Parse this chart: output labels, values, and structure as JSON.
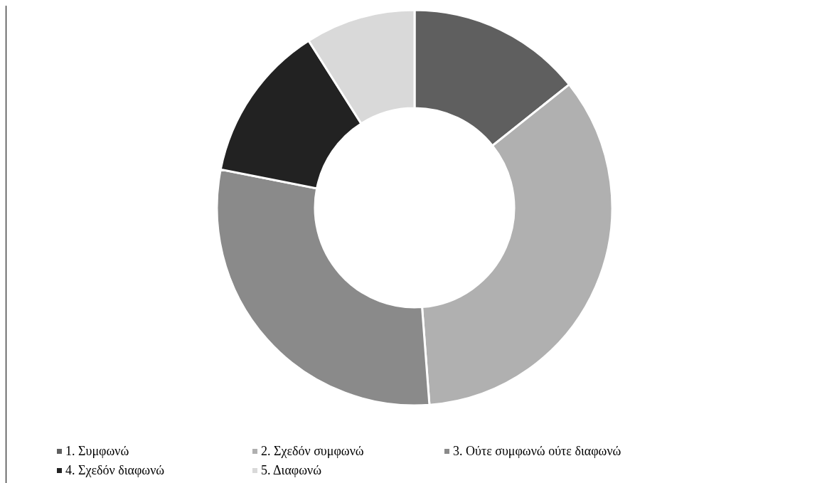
{
  "chart_data": {
    "type": "donut",
    "categories": [
      "1. Συμφωνώ",
      "2. Σχεδόν συμφωνώ",
      "3. Ούτε συμφωνώ ούτε διαφωνώ",
      "4. Σχεδόν διαφωνώ",
      "5. Διαφωνώ"
    ],
    "values": [
      14.3,
      34.5,
      29.3,
      12.9,
      9.0
    ],
    "colors": [
      "#5f5f5f",
      "#b0b0b0",
      "#8a8a8a",
      "#222222",
      "#d9d9d9"
    ],
    "legend": "bottom"
  }
}
